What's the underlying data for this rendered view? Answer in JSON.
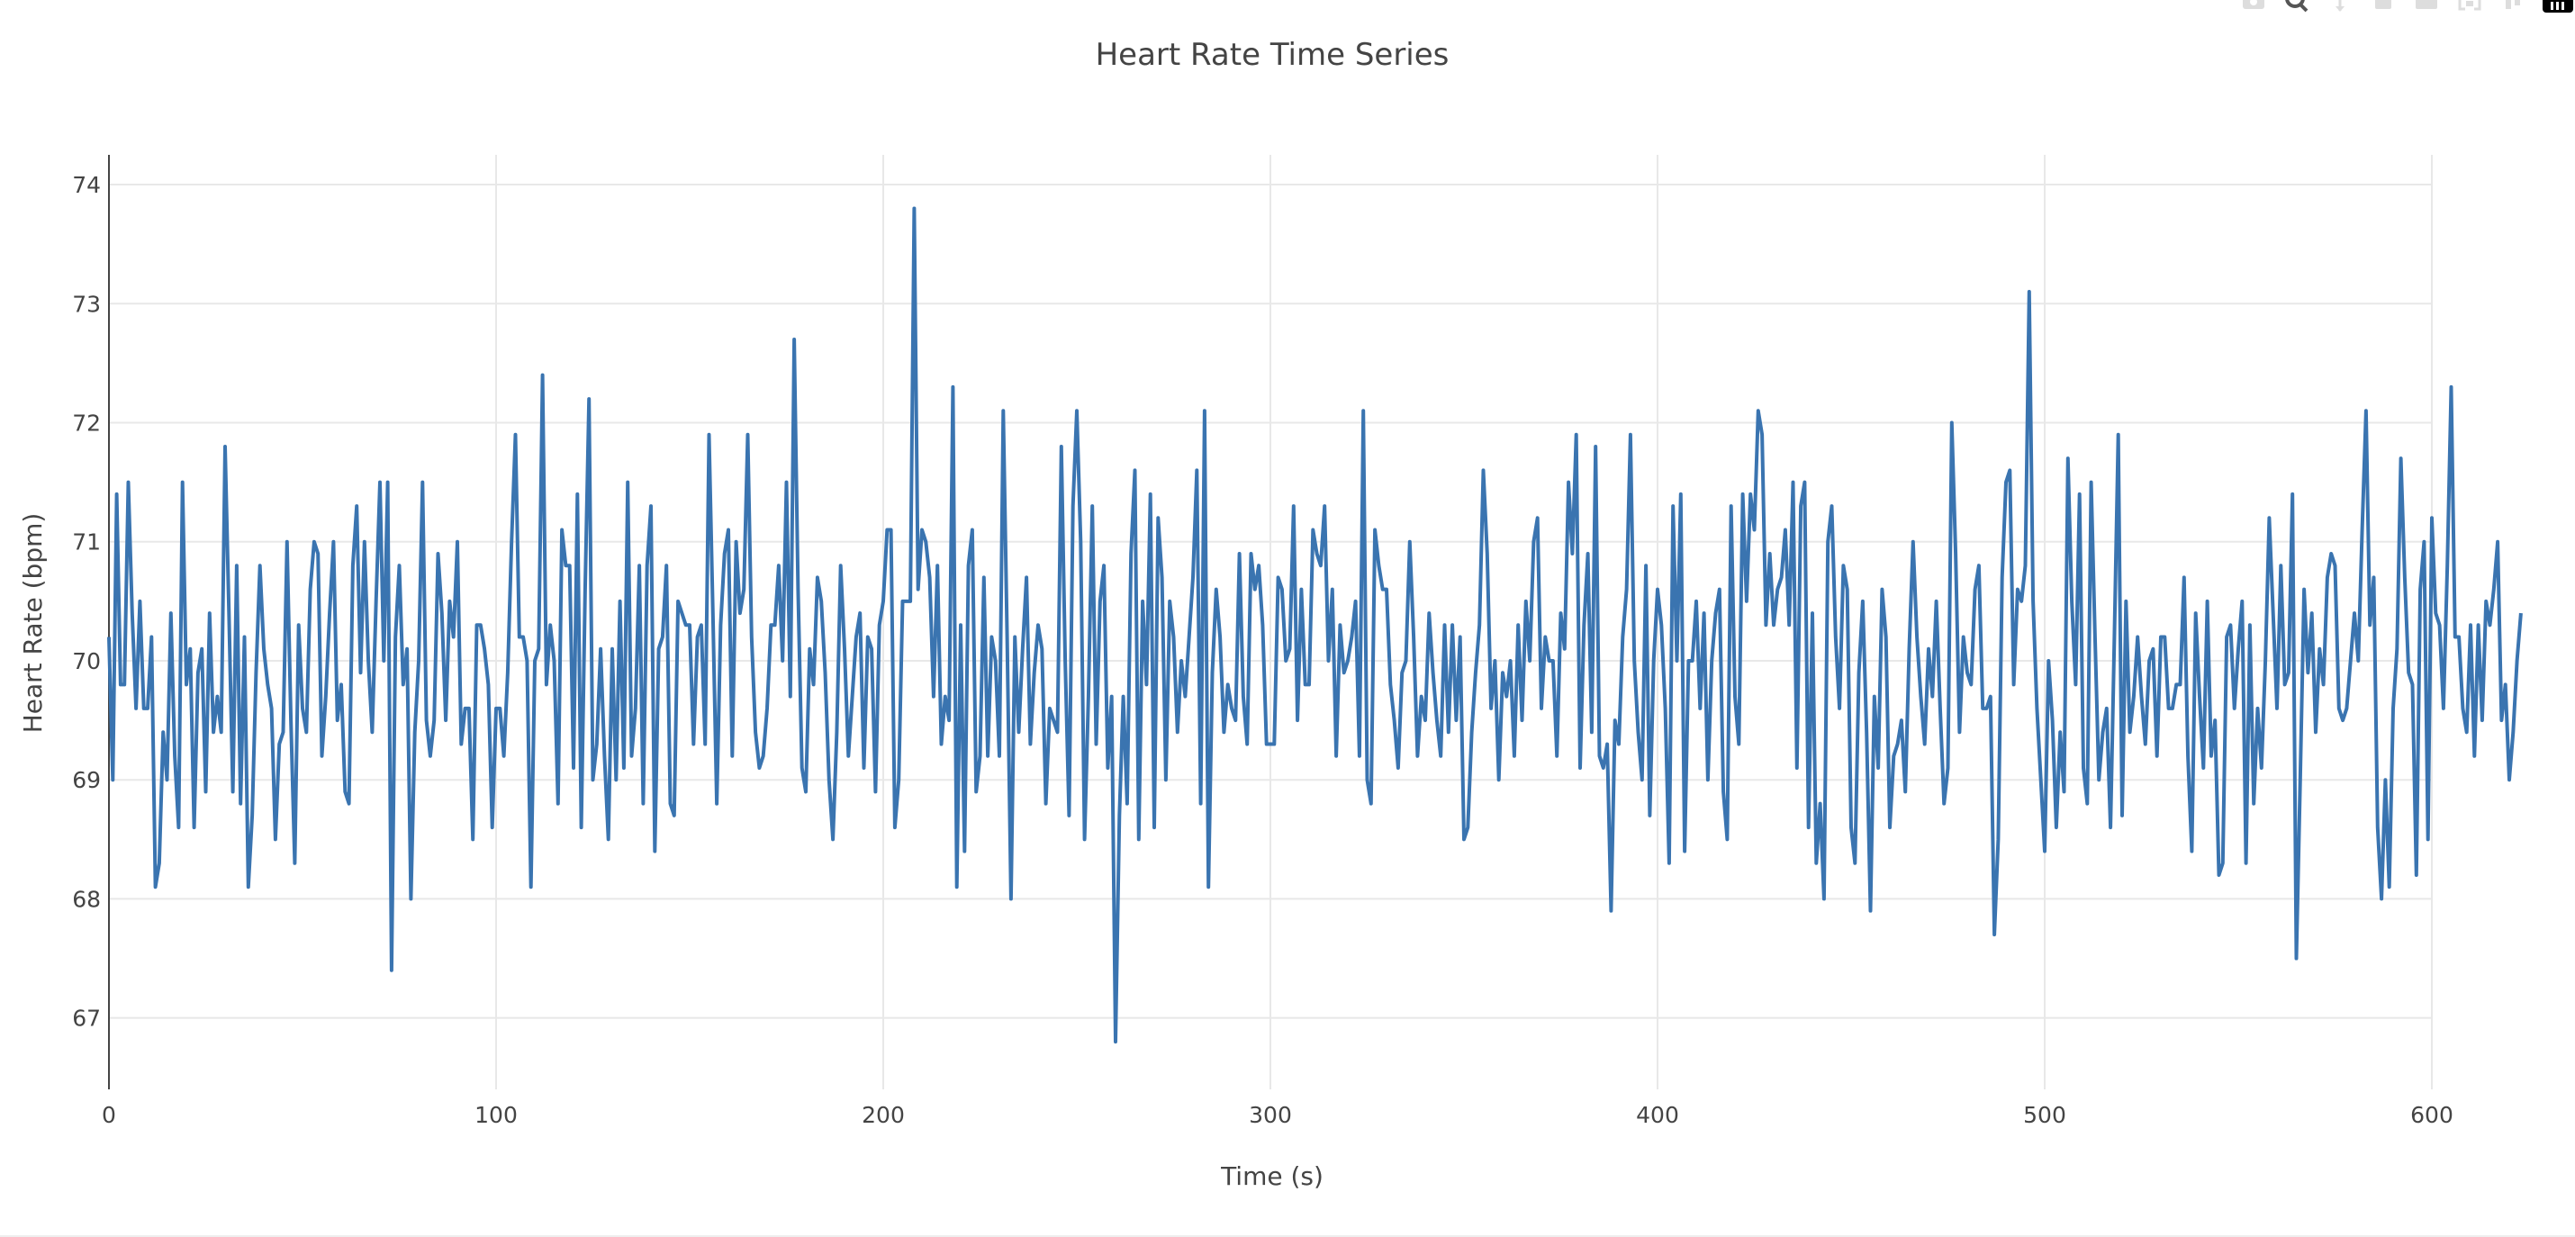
{
  "chart_data": {
    "type": "line",
    "title": "Heart Rate Time Series",
    "xlabel": "Time (s)",
    "ylabel": "Heart Rate (bpm)",
    "xlim": [
      0,
      600
    ],
    "ylim": [
      66.4,
      74.25
    ],
    "xticks": [
      0,
      100,
      200,
      300,
      400,
      500,
      600
    ],
    "yticks": [
      67,
      68,
      69,
      70,
      71,
      72,
      73,
      74
    ],
    "grid": true,
    "legend": "none",
    "line_color": "#3a74b0",
    "series": [
      {
        "x_start": 0,
        "x_step": 1,
        "values": [
          70.2,
          69.0,
          71.4,
          69.8,
          69.8,
          71.5,
          70.4,
          69.6,
          70.5,
          69.6,
          69.6,
          70.2,
          68.1,
          68.3,
          69.4,
          69.0,
          70.4,
          69.2,
          68.6,
          71.5,
          69.8,
          70.1,
          68.6,
          69.9,
          70.1,
          68.9,
          70.4,
          69.4,
          69.7,
          69.4,
          71.8,
          70.4,
          68.9,
          70.8,
          68.8,
          70.2,
          68.1,
          68.7,
          69.9,
          70.8,
          70.1,
          69.8,
          69.6,
          68.5,
          69.3,
          69.4,
          71.0,
          69.5,
          68.3,
          70.3,
          69.6,
          69.4,
          70.6,
          71.0,
          70.9,
          69.2,
          69.7,
          70.4,
          71.0,
          69.5,
          69.8,
          68.9,
          68.8,
          70.8,
          71.3,
          69.9,
          71.0,
          70.0,
          69.4,
          70.5,
          71.5,
          70.0,
          71.5,
          67.4,
          70.2,
          70.8,
          69.8,
          70.1,
          68.0,
          69.4,
          70.0,
          71.5,
          69.5,
          69.2,
          69.5,
          70.9,
          70.4,
          69.5,
          70.5,
          70.2,
          71.0,
          69.3,
          69.6,
          69.6,
          68.5,
          70.3,
          70.3,
          70.1,
          69.8,
          68.6,
          69.6,
          69.6,
          69.2,
          69.9,
          71.0,
          71.9,
          70.2,
          70.2,
          70.0,
          68.1,
          70.0,
          70.1,
          72.4,
          69.8,
          70.3,
          70.0,
          68.8,
          71.1,
          70.8,
          70.8,
          69.1,
          71.4,
          68.6,
          70.6,
          72.2,
          69.0,
          69.3,
          70.1,
          69.2,
          68.5,
          70.1,
          69.0,
          70.5,
          69.1,
          71.5,
          69.2,
          69.6,
          70.8,
          68.8,
          70.8,
          71.3,
          68.4,
          70.1,
          70.2,
          70.8,
          68.8,
          68.7,
          70.5,
          70.4,
          70.3,
          70.3,
          69.3,
          70.2,
          70.3,
          69.3,
          71.9,
          70.4,
          68.8,
          70.3,
          70.9,
          71.1,
          69.2,
          71.0,
          70.4,
          70.6,
          71.9,
          70.2,
          69.4,
          69.1,
          69.2,
          69.6,
          70.3,
          70.3,
          70.8,
          70.0,
          71.5,
          69.7,
          72.7,
          70.6,
          69.1,
          68.9,
          70.1,
          69.8,
          70.7,
          70.5,
          69.9,
          69.0,
          68.5,
          69.4,
          70.8,
          70.1,
          69.2,
          69.7,
          70.2,
          70.4,
          69.1,
          70.2,
          70.1,
          68.9,
          70.3,
          70.5,
          71.1,
          71.1,
          68.6,
          69.0,
          70.5,
          70.5,
          70.5,
          73.8,
          70.6,
          71.1,
          71.0,
          70.7,
          69.7,
          70.8,
          69.3,
          69.7,
          69.5,
          72.3,
          68.1,
          70.3,
          68.4,
          70.8,
          71.1,
          68.9,
          69.2,
          70.7,
          69.2,
          70.2,
          70.0,
          69.2,
          72.1,
          70.2,
          68.0,
          70.2,
          69.4,
          70.1,
          70.7,
          69.3,
          69.9,
          70.3,
          70.1,
          68.8,
          69.6,
          69.5,
          69.4,
          71.8,
          70.0,
          68.7,
          71.3,
          72.1,
          71.0,
          68.5,
          69.7,
          71.3,
          69.3,
          70.5,
          70.8,
          69.1,
          69.7,
          66.8,
          68.7,
          69.7,
          68.8,
          70.9,
          71.6,
          68.5,
          70.5,
          69.8,
          71.4,
          68.6,
          71.2,
          70.7,
          69.0,
          70.5,
          70.2,
          69.4,
          70.0,
          69.7,
          70.2,
          70.7,
          71.6,
          68.8,
          72.1,
          68.1,
          69.9,
          70.6,
          70.2,
          69.4,
          69.8,
          69.6,
          69.5,
          70.9,
          69.7,
          69.3,
          70.9,
          70.6,
          70.8,
          70.3,
          69.3,
          69.3,
          69.3,
          70.7,
          70.6,
          70.0,
          70.1,
          71.3,
          69.5,
          70.6,
          69.8,
          69.8,
          71.1,
          70.9,
          70.8,
          71.3,
          70.0,
          70.6,
          69.2,
          70.3,
          69.9,
          70.0,
          70.2,
          70.5,
          69.2,
          72.1,
          69.0,
          68.8,
          71.1,
          70.8,
          70.6,
          70.6,
          69.8,
          69.5,
          69.1,
          69.9,
          70.0,
          71.0,
          70.2,
          69.2,
          69.7,
          69.5,
          70.4,
          69.9,
          69.5,
          69.2,
          70.3,
          69.4,
          70.3,
          69.5,
          70.2,
          68.5,
          68.6,
          69.4,
          69.9,
          70.3,
          71.6,
          70.9,
          69.6,
          70.0,
          69.0,
          69.9,
          69.7,
          70.0,
          69.2,
          70.3,
          69.5,
          70.5,
          70.0,
          71.0,
          71.2,
          69.6,
          70.2,
          70.0,
          70.0,
          69.2,
          70.4,
          70.1,
          71.5,
          70.9,
          71.9,
          69.1,
          70.3,
          70.9,
          69.4,
          71.8,
          69.2,
          69.1,
          69.3,
          67.9,
          69.5,
          69.3,
          70.2,
          70.6,
          71.9,
          70.0,
          69.4,
          69.0,
          70.8,
          68.7,
          70.0,
          70.6,
          70.3,
          69.6,
          68.3,
          71.3,
          70.0,
          71.4,
          68.4,
          70.0,
          70.0,
          70.5,
          69.6,
          70.4,
          69.0,
          70.0,
          70.4,
          70.6,
          68.9,
          68.5,
          71.3,
          69.7,
          69.3,
          71.4,
          70.5,
          71.4,
          71.1,
          72.1,
          71.9,
          70.3,
          70.9,
          70.3,
          70.6,
          70.7,
          71.1,
          70.3,
          71.5,
          69.1,
          71.3,
          71.5,
          68.6,
          70.4,
          68.3,
          68.8,
          68.0,
          71.0,
          71.3,
          70.2,
          69.6,
          70.8,
          70.6,
          68.6,
          68.3,
          69.9,
          70.5,
          69.4,
          67.9,
          69.7,
          69.1,
          70.6,
          70.2,
          68.6,
          69.2,
          69.3,
          69.5,
          68.9,
          70.1,
          71.0,
          70.2,
          69.7,
          69.3,
          70.1,
          69.7,
          70.5,
          69.6,
          68.8,
          69.1,
          72.0,
          70.9,
          69.4,
          70.2,
          69.9,
          69.8,
          70.6,
          70.8,
          69.6,
          69.6,
          69.7,
          67.7,
          68.5,
          70.7,
          71.5,
          71.6,
          69.8,
          70.6,
          70.5,
          70.8,
          73.1,
          70.5,
          69.6,
          69.0,
          68.4,
          70.0,
          69.5,
          68.6,
          69.4,
          68.9,
          71.7,
          70.5,
          69.8,
          71.4,
          69.1,
          68.8,
          71.5,
          70.2,
          69.0,
          69.4,
          69.6,
          68.6,
          70.2,
          71.9,
          68.7,
          70.5,
          69.4,
          69.7,
          70.2,
          69.7,
          69.3,
          70.0,
          70.1,
          69.2,
          70.2,
          70.2,
          69.6,
          69.6,
          69.8,
          69.8,
          70.7,
          69.2,
          68.4,
          70.4,
          69.7,
          69.1,
          70.5,
          69.2,
          69.5,
          68.2,
          68.3,
          70.2,
          70.3,
          69.6,
          70.1,
          70.5,
          68.3,
          70.3,
          68.8,
          69.6,
          69.1,
          70.0,
          71.2,
          70.4,
          69.6,
          70.8,
          69.8,
          69.9,
          71.4,
          67.5,
          69.0,
          70.6,
          69.9,
          70.4,
          69.4,
          70.1,
          69.8,
          70.7,
          70.9,
          70.8,
          69.6,
          69.5,
          69.6,
          70.0,
          70.4,
          70.0,
          71.1,
          72.1,
          70.3,
          70.7,
          68.6,
          68.0,
          69.0,
          68.1,
          69.6,
          70.1,
          71.7,
          70.7,
          69.9,
          69.8,
          68.2,
          70.6,
          71.0,
          68.5,
          71.2,
          70.4,
          70.3,
          69.6,
          70.8,
          72.3,
          70.2,
          70.2,
          69.6,
          69.4,
          70.3,
          69.2,
          70.3,
          69.5,
          70.5,
          70.3,
          70.6,
          71.0,
          69.5,
          69.8,
          69.0,
          69.4,
          70.0,
          70.4
        ]
      }
    ]
  },
  "modebar": {
    "icons": [
      "camera-icon",
      "zoom-icon",
      "pan-icon",
      "zoom-in-icon",
      "zoom-out-icon",
      "autoscale-icon",
      "reset-axes-icon",
      "plotly-logo-icon"
    ]
  }
}
